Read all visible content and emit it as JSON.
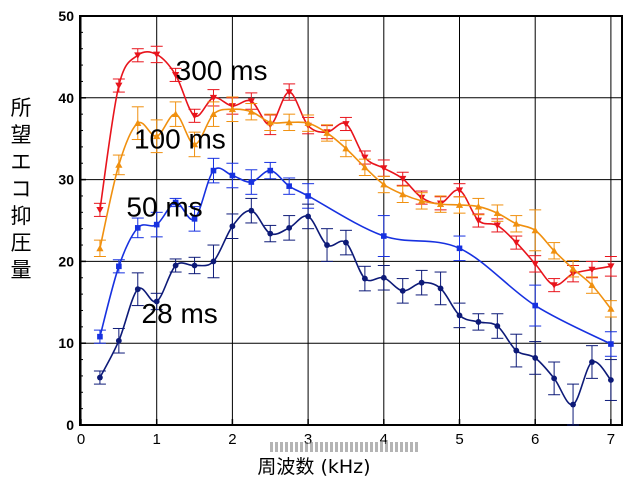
{
  "chart_data": {
    "type": "line",
    "title": "",
    "ylabel_chars": [
      "所",
      "望",
      "エ",
      "コ",
      "抑",
      "圧",
      "量"
    ],
    "xlabel": "周波数 (kHz)",
    "x_ticks": [
      "0",
      "1",
      "2",
      "3",
      "4",
      "5",
      "6",
      "7"
    ],
    "y_ticks": [
      "0",
      "10",
      "20",
      "30",
      "40",
      "50"
    ],
    "xlim": [
      0,
      7.2
    ],
    "ylim": [
      0,
      50
    ],
    "grid": true,
    "series": [
      {
        "name": "300 ms",
        "color": "#e8141c",
        "marker": "triangle-down",
        "x": [
          0.25,
          0.5,
          0.75,
          1.0,
          1.25,
          1.5,
          1.75,
          2.0,
          2.25,
          2.5,
          2.75,
          3.0,
          3.25,
          3.5,
          3.75,
          4.0,
          4.25,
          4.5,
          4.75,
          5.0,
          5.25,
          5.5,
          5.75,
          6.0,
          6.25,
          6.5,
          6.75,
          7.0
        ],
        "y": [
          26.3,
          41.5,
          45.2,
          45.3,
          42.8,
          37.8,
          40.0,
          39.0,
          39.6,
          36.7,
          40.7,
          36.6,
          35.8,
          36.8,
          32.7,
          31.4,
          30.1,
          27.8,
          27.1,
          28.7,
          25.0,
          24.4,
          22.3,
          19.7,
          17.1,
          18.5,
          19.0,
          19.4
        ],
        "err": [
          0.8,
          0.8,
          0.8,
          1.0,
          0.8,
          0.8,
          1.0,
          1.0,
          1.0,
          1.2,
          1.0,
          1.0,
          0.8,
          0.8,
          0.8,
          1.0,
          0.8,
          0.8,
          0.8,
          0.8,
          0.8,
          0.8,
          0.8,
          1.0,
          0.8,
          1.0,
          1.0,
          1.2
        ]
      },
      {
        "name": "100 ms",
        "color": "#f0900f",
        "marker": "triangle-up",
        "x": [
          0.25,
          0.5,
          0.75,
          1.0,
          1.25,
          1.5,
          1.75,
          2.0,
          2.25,
          2.5,
          2.75,
          3.0,
          3.25,
          3.5,
          3.75,
          4.0,
          4.25,
          4.5,
          4.75,
          5.0,
          5.25,
          5.5,
          5.75,
          6.0,
          6.25,
          6.5,
          6.75,
          7.0
        ],
        "y": [
          21.6,
          31.8,
          36.9,
          35.3,
          38.0,
          34.3,
          38.0,
          38.6,
          38.3,
          37.0,
          37.0,
          36.9,
          35.7,
          33.8,
          31.5,
          29.4,
          28.2,
          27.4,
          27.0,
          26.9,
          26.7,
          25.9,
          24.6,
          23.8,
          21.3,
          19.1,
          17.1,
          14.2
        ],
        "err": [
          1.0,
          1.2,
          2.0,
          2.0,
          1.5,
          1.5,
          1.5,
          1.5,
          1.0,
          1.0,
          1.0,
          1.0,
          1.0,
          1.0,
          1.0,
          1.0,
          1.0,
          1.0,
          1.0,
          1.0,
          1.0,
          1.0,
          1.0,
          2.5,
          1.0,
          1.0,
          1.0,
          1.0
        ]
      },
      {
        "name": "50 ms",
        "color": "#1731e0",
        "marker": "square",
        "x": [
          0.25,
          0.5,
          0.75,
          1.0,
          1.25,
          1.5,
          1.75,
          2.0,
          2.25,
          2.5,
          2.75,
          3.0,
          4.0,
          5.0,
          6.0,
          7.0
        ],
        "y": [
          10.8,
          19.4,
          24.1,
          24.5,
          27.2,
          25.2,
          31.1,
          30.5,
          29.7,
          31.1,
          29.2,
          28.0,
          23.1,
          21.6,
          14.6,
          9.9
        ],
        "err": [
          0.8,
          0.8,
          1.2,
          1.5,
          0.5,
          1.5,
          1.5,
          1.5,
          1.5,
          1.0,
          1.0,
          1.5,
          2.5,
          1.5,
          2.5,
          1.5
        ]
      },
      {
        "name": "28 ms",
        "color": "#0d1a78",
        "marker": "circle",
        "x": [
          0.25,
          0.5,
          0.75,
          1.0,
          1.25,
          1.5,
          1.75,
          2.0,
          2.25,
          2.5,
          2.75,
          3.0,
          3.25,
          3.5,
          3.75,
          4.0,
          4.25,
          4.5,
          4.75,
          5.0,
          5.25,
          5.5,
          5.75,
          6.0,
          6.25,
          6.5,
          6.75,
          7.0
        ],
        "y": [
          5.8,
          10.3,
          16.6,
          15.1,
          19.5,
          19.5,
          20.0,
          24.3,
          26.2,
          23.4,
          24.1,
          25.5,
          22.0,
          22.3,
          17.9,
          18.0,
          16.4,
          17.4,
          16.7,
          13.4,
          12.6,
          12.1,
          9.1,
          8.2,
          5.7,
          2.5,
          7.7,
          5.5
        ],
        "err": [
          0.8,
          1.5,
          2.0,
          1.0,
          0.8,
          1.0,
          2.0,
          1.5,
          1.5,
          1.0,
          1.5,
          1.5,
          2.0,
          1.5,
          1.5,
          1.5,
          1.5,
          1.5,
          2.0,
          1.5,
          1.0,
          1.5,
          2.0,
          2.0,
          2.0,
          2.5,
          2.0,
          2.5
        ]
      }
    ],
    "annotations": [
      {
        "text": "300 ms",
        "series": "300 ms"
      },
      {
        "text": "100 ms",
        "series": "100 ms"
      },
      {
        "text": "50 ms",
        "series": "50 ms"
      },
      {
        "text": "28 ms",
        "series": "28 ms"
      }
    ]
  }
}
